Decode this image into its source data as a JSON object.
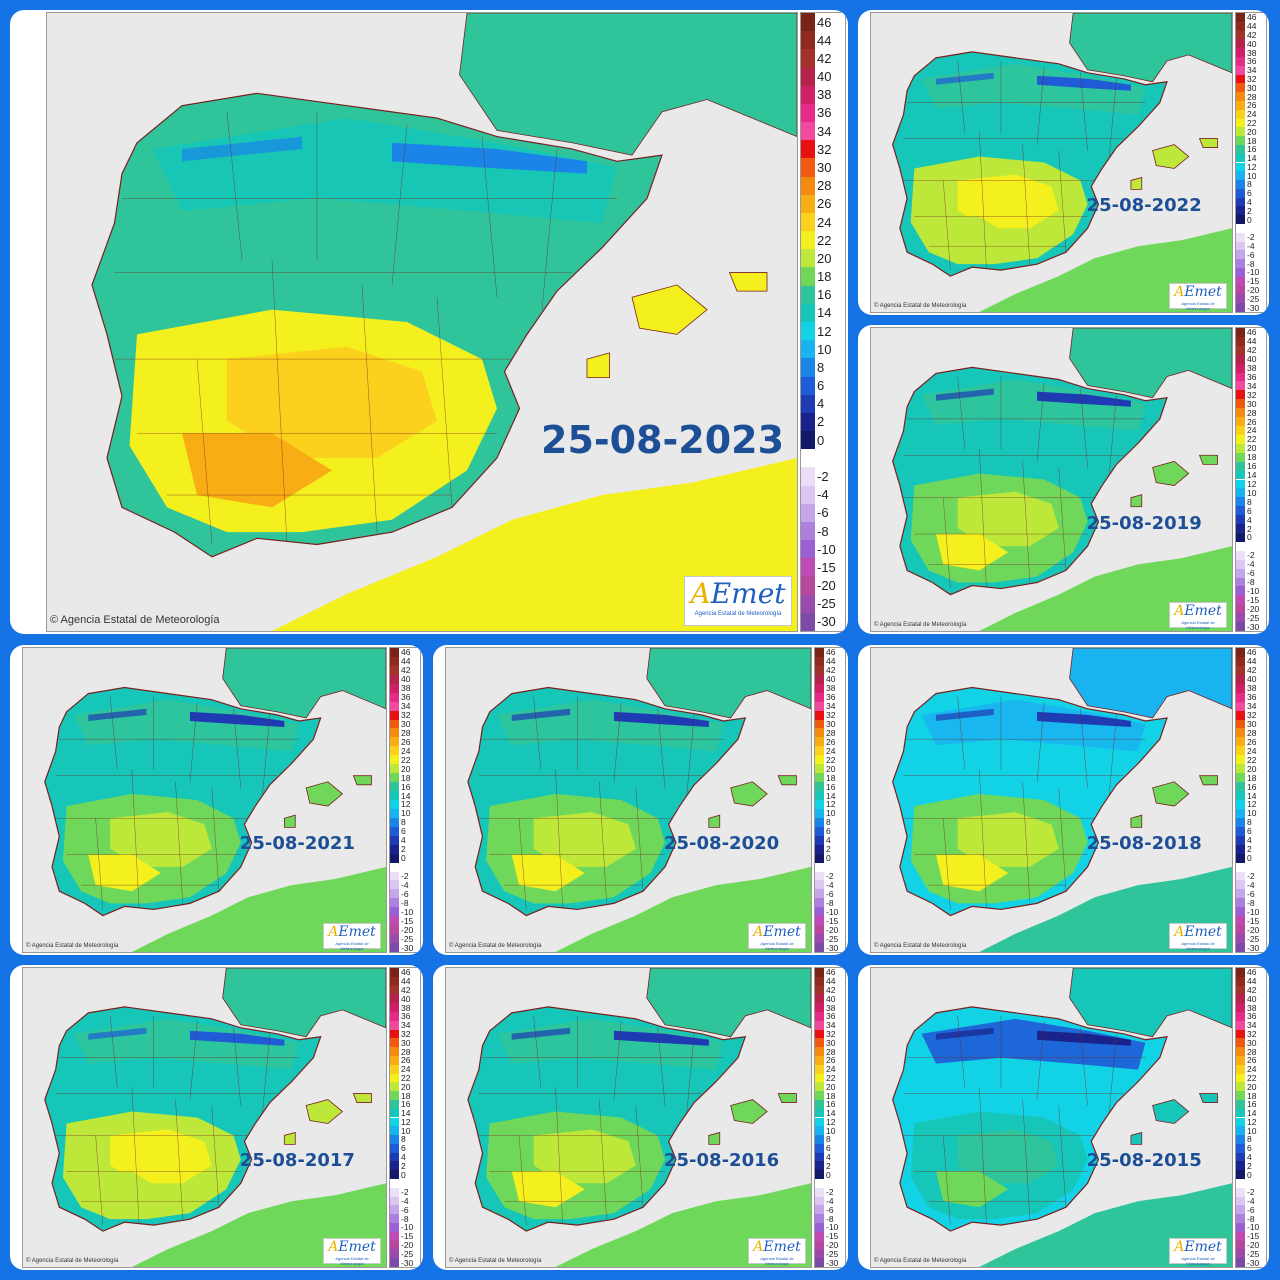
{
  "panels": [
    {
      "id": "p2023",
      "date": "25-08-2023",
      "variant": "hot"
    },
    {
      "id": "p2022",
      "date": "25-08-2022",
      "variant": "warm"
    },
    {
      "id": "p2019",
      "date": "25-08-2019",
      "variant": "mild"
    },
    {
      "id": "p2021",
      "date": "25-08-2021",
      "variant": "mild"
    },
    {
      "id": "p2020",
      "date": "25-08-2020",
      "variant": "mild"
    },
    {
      "id": "p2018",
      "date": "25-08-2018",
      "variant": "cool"
    },
    {
      "id": "p2017",
      "date": "25-08-2017",
      "variant": "warm"
    },
    {
      "id": "p2016",
      "date": "25-08-2016",
      "variant": "mild"
    },
    {
      "id": "p2015",
      "date": "25-08-2015",
      "variant": "cold"
    }
  ],
  "copyright": "© Agencia Estatal de Meteorología",
  "logo": {
    "brand_a": "A",
    "brand_rest": "Emet",
    "subtitle": "Agencia Estatal de Meteorología"
  },
  "legend": {
    "entries": [
      {
        "label": "46",
        "color": "#7a2418"
      },
      {
        "label": "44",
        "color": "#8e2a1e"
      },
      {
        "label": "42",
        "color": "#a1332a"
      },
      {
        "label": "40",
        "color": "#b5234c"
      },
      {
        "label": "38",
        "color": "#cf1f66"
      },
      {
        "label": "36",
        "color": "#e62a88"
      },
      {
        "label": "34",
        "color": "#f04a9e"
      },
      {
        "label": "32",
        "color": "#e81010"
      },
      {
        "label": "30",
        "color": "#f05a10"
      },
      {
        "label": "28",
        "color": "#f58a10"
      },
      {
        "label": "26",
        "color": "#f9ad14"
      },
      {
        "label": "24",
        "color": "#fbd11e"
      },
      {
        "label": "22",
        "color": "#f3f01e"
      },
      {
        "label": "20",
        "color": "#bde83a"
      },
      {
        "label": "18",
        "color": "#6fd85a"
      },
      {
        "label": "16",
        "color": "#2fc49a"
      },
      {
        "label": "14",
        "color": "#16c6b8"
      },
      {
        "label": "12",
        "color": "#12d2e6"
      },
      {
        "label": "10",
        "color": "#19b4f0"
      },
      {
        "label": "8",
        "color": "#1a84e8"
      },
      {
        "label": "6",
        "color": "#1f5bd6"
      },
      {
        "label": "4",
        "color": "#1f3bb4"
      },
      {
        "label": "2",
        "color": "#1a238c"
      },
      {
        "label": "0",
        "color": "#141868"
      },
      {
        "label": "",
        "color": "#ffffff"
      },
      {
        "label": "-2",
        "color": "#ece0f8"
      },
      {
        "label": "-4",
        "color": "#dcc6f2"
      },
      {
        "label": "-6",
        "color": "#c6a6ea"
      },
      {
        "label": "-8",
        "color": "#ad80de"
      },
      {
        "label": "-10",
        "color": "#9a5fd2"
      },
      {
        "label": "-15",
        "color": "#c04ab4"
      },
      {
        "label": "-20",
        "color": "#b8489e"
      },
      {
        "label": "-25",
        "color": "#9a4aaa"
      },
      {
        "label": "-30",
        "color": "#7e4aa8"
      }
    ]
  },
  "colors": {
    "background": "#1673e6",
    "sea": "#e9e9e9",
    "border": "#7a1f1f",
    "label": "#1c4f96"
  }
}
